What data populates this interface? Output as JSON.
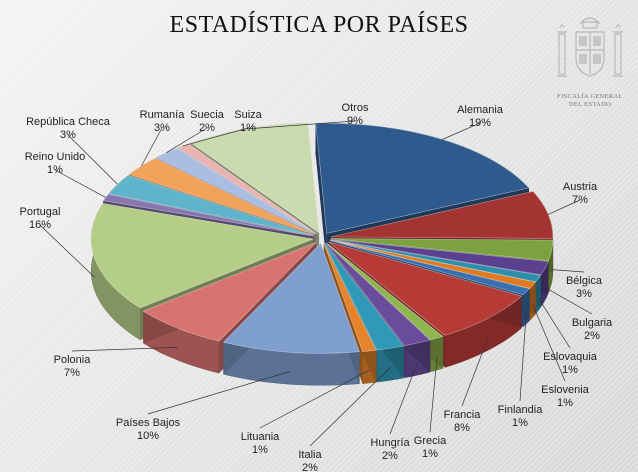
{
  "title": "ESTADÍSTICA POR PAÍSES",
  "logo": {
    "line1": "FISCALÍA GENERAL",
    "line2": "DEL ESTADO"
  },
  "chart_data": {
    "type": "pie",
    "title": "ESTADÍSTICA POR PAÍSES",
    "slices": [
      {
        "name": "Alemania",
        "value": 19,
        "label": "19%",
        "color": "#2E5A8E"
      },
      {
        "name": "Austria",
        "value": 7,
        "label": "7%",
        "color": "#A33431"
      },
      {
        "name": "Bélgica",
        "value": 3,
        "label": "3%",
        "color": "#7BA23F"
      },
      {
        "name": "Bulgaria",
        "value": 2,
        "label": "2%",
        "color": "#5B4090"
      },
      {
        "name": "Eslovaquia",
        "value": 1,
        "label": "1%",
        "color": "#2E8FAC"
      },
      {
        "name": "Eslovenia",
        "value": 1,
        "label": "1%",
        "color": "#E07B22"
      },
      {
        "name": "Finlandia",
        "value": 1,
        "label": "1%",
        "color": "#3A6FB0"
      },
      {
        "name": "Francia",
        "value": 8,
        "label": "8%",
        "color": "#B63B37"
      },
      {
        "name": "Grecia",
        "value": 1,
        "label": "1%",
        "color": "#8FB54E"
      },
      {
        "name": "Hungría",
        "value": 2,
        "label": "2%",
        "color": "#6A4C9C"
      },
      {
        "name": "Italia",
        "value": 2,
        "label": "2%",
        "color": "#3199B8"
      },
      {
        "name": "Lituania",
        "value": 1,
        "label": "1%",
        "color": "#E5842B"
      },
      {
        "name": "Países Bajos",
        "value": 10,
        "label": "10%",
        "color": "#7F9FD1"
      },
      {
        "name": "Polonia",
        "value": 7,
        "label": "7%",
        "color": "#D97370"
      },
      {
        "name": "Portugal",
        "value": 16,
        "label": "16%",
        "color": "#B4CE88"
      },
      {
        "name": "Reino Unido",
        "value": 1,
        "label": "1%",
        "color": "#8877AE"
      },
      {
        "name": "República Checa",
        "value": 3,
        "label": "3%",
        "color": "#5FB4CC"
      },
      {
        "name": "Rumanía",
        "value": 3,
        "label": "3%",
        "color": "#F2A35B"
      },
      {
        "name": "Suecia",
        "value": 2,
        "label": "2%",
        "color": "#A9BEE2"
      },
      {
        "name": "Suiza",
        "value": 1,
        "label": "1%",
        "color": "#E9B3B0"
      },
      {
        "name": "Otros",
        "value": 9,
        "label": "9%",
        "color": "#CBDBB0"
      }
    ]
  }
}
